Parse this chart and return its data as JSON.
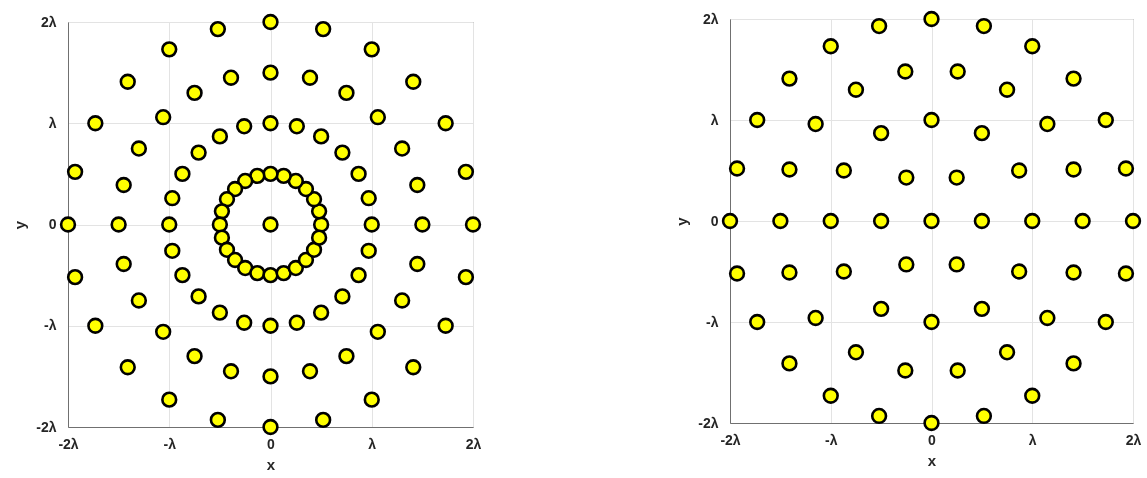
{
  "chart_data": [
    {
      "type": "scatter",
      "xlabel": "x",
      "ylabel": "y",
      "color": "#ffff00",
      "marker": "circle",
      "grid": true,
      "xlim": [
        -2,
        2
      ],
      "ylim": [
        -2,
        2
      ],
      "xticks": [
        {
          "value": -2,
          "label": "-2λ"
        },
        {
          "value": -1,
          "label": "-λ"
        },
        0,
        {
          "value": 1,
          "label": "λ"
        },
        {
          "value": 2,
          "label": "2λ"
        }
      ],
      "yticks": [
        {
          "value": -2,
          "label": "-2λ"
        },
        {
          "value": -1,
          "label": "-λ"
        },
        0,
        {
          "value": 1,
          "label": "λ"
        },
        {
          "value": 2,
          "label": "2λ"
        }
      ],
      "x": [
        0,
        0.5,
        0.48,
        0.43,
        0.35,
        0.25,
        0.13,
        0,
        -0.13,
        -0.25,
        -0.35,
        -0.43,
        -0.48,
        -0.5,
        -0.48,
        -0.43,
        -0.35,
        -0.25,
        -0.13,
        0,
        0.13,
        0.25,
        0.35,
        0.43,
        0.48,
        1,
        0.97,
        0.87,
        0.71,
        0.5,
        0.26,
        0,
        -0.26,
        -0.5,
        -0.71,
        -0.87,
        -0.97,
        -1,
        -0.97,
        -0.87,
        -0.71,
        -0.5,
        -0.26,
        0,
        0.26,
        0.5,
        0.71,
        0.87,
        0.97,
        1.5,
        1.45,
        1.3,
        1.06,
        0.75,
        0.39,
        0,
        -0.39,
        -0.75,
        -1.06,
        -1.3,
        -1.45,
        -1.5,
        -1.45,
        -1.3,
        -1.06,
        -0.75,
        -0.39,
        0,
        0.39,
        0.75,
        1.06,
        1.3,
        1.45,
        2,
        1.93,
        1.73,
        1.41,
        1,
        0.52,
        0,
        -0.52,
        -1,
        -1.41,
        -1.73,
        -1.93,
        -2,
        -1.93,
        -1.73,
        -1.41,
        -1,
        -0.52,
        0,
        0.52,
        1,
        1.41,
        1.73,
        1.93
      ],
      "values": [
        0,
        0,
        0.13,
        0.25,
        0.35,
        0.43,
        0.48,
        0.5,
        0.48,
        0.43,
        0.35,
        0.25,
        0.13,
        0,
        -0.13,
        -0.25,
        -0.35,
        -0.43,
        -0.48,
        -0.5,
        -0.48,
        -0.43,
        -0.35,
        -0.25,
        -0.13,
        0,
        0.26,
        0.5,
        0.71,
        0.87,
        0.97,
        1,
        0.97,
        0.87,
        0.71,
        0.5,
        0.26,
        0,
        -0.26,
        -0.5,
        -0.71,
        -0.87,
        -0.97,
        -1,
        -0.97,
        -0.87,
        -0.71,
        -0.5,
        -0.26,
        0,
        0.39,
        0.75,
        1.06,
        1.3,
        1.45,
        1.5,
        1.45,
        1.3,
        1.06,
        0.75,
        0.39,
        0,
        -0.39,
        -0.75,
        -1.06,
        -1.3,
        -1.45,
        -1.5,
        -1.45,
        -1.3,
        -1.06,
        -0.75,
        -0.39,
        0,
        0.52,
        1,
        1.41,
        1.73,
        1.93,
        2,
        1.93,
        1.73,
        1.41,
        1,
        0.52,
        0,
        -0.52,
        -1,
        -1.41,
        -1.73,
        -1.93,
        -2,
        -1.93,
        -1.73,
        -1.41,
        -1,
        -0.52
      ]
    },
    {
      "type": "scatter",
      "xlabel": "x",
      "ylabel": "y",
      "color": "#ffff00",
      "marker": "circle",
      "grid": true,
      "xlim": [
        -2,
        2
      ],
      "ylim": [
        -2,
        2
      ],
      "xticks": [
        {
          "value": -2,
          "label": "-2λ"
        },
        {
          "value": -1,
          "label": "-λ"
        },
        0,
        {
          "value": 1,
          "label": "λ"
        },
        {
          "value": 2,
          "label": "2λ"
        }
      ],
      "yticks": [
        {
          "value": -2,
          "label": "-2λ"
        },
        {
          "value": -1,
          "label": "-λ"
        },
        0,
        {
          "value": 1,
          "label": "λ"
        },
        {
          "value": 2,
          "label": "2λ"
        }
      ],
      "x": [
        0,
        0.5,
        0.25,
        -0.25,
        -0.5,
        -0.25,
        0.25,
        1,
        0.87,
        0.5,
        0,
        -0.5,
        -0.87,
        -1,
        -0.87,
        -0.5,
        0,
        0.5,
        0.87,
        1.5,
        1.41,
        1.15,
        0.75,
        0.26,
        -0.26,
        -0.75,
        -1.15,
        -1.41,
        -1.5,
        -1.41,
        -1.15,
        -0.75,
        -0.26,
        0.26,
        0.75,
        1.15,
        1.41,
        2,
        1.93,
        1.73,
        1.41,
        1,
        0.52,
        0,
        -0.52,
        -1,
        -1.41,
        -1.73,
        -1.93,
        -2,
        -1.93,
        -1.73,
        -1.41,
        -1,
        -0.52,
        0,
        0.52,
        1,
        1.41,
        1.73,
        1.93
      ],
      "values": [
        0,
        0,
        0.43,
        0.43,
        0,
        -0.43,
        -0.43,
        0,
        0.5,
        0.87,
        1,
        0.87,
        0.5,
        0,
        -0.5,
        -0.87,
        -1,
        -0.87,
        -0.5,
        0,
        0.51,
        0.96,
        1.3,
        1.48,
        1.48,
        1.3,
        0.96,
        0.51,
        0,
        -0.51,
        -0.96,
        -1.3,
        -1.48,
        -1.48,
        -1.3,
        -0.96,
        -0.51,
        0,
        0.52,
        1,
        1.41,
        1.73,
        1.93,
        2,
        1.93,
        1.73,
        1.41,
        1,
        0.52,
        0,
        -0.52,
        -1,
        -1.41,
        -1.73,
        -1.93,
        -2,
        -1.93,
        -1.73,
        -1.41,
        -1,
        -0.52
      ]
    }
  ]
}
